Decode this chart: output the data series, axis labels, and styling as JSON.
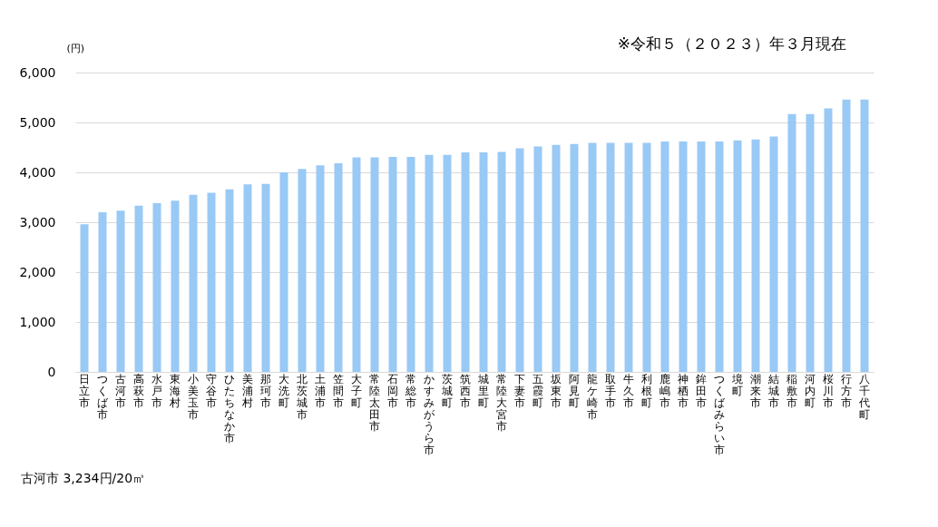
{
  "chart_data": {
    "type": "bar",
    "ylabel": "(円)",
    "annotations": [
      "※令和５（２０２３）年３月現在",
      "古河市 3,234円/20㎥"
    ],
    "categories": [
      "日立市",
      "つくば市",
      "古河市",
      "高萩市",
      "水戸市",
      "東海村",
      "小美玉市",
      "守谷市",
      "ひたちなか市",
      "美浦村",
      "那珂市",
      "大洗町",
      "北茨城市",
      "土浦市",
      "笠間市",
      "大子町",
      "常陸太田市",
      "石岡市",
      "常総市",
      "かすみがうら市",
      "茨城町",
      "筑西市",
      "城里町",
      "常陸大宮市",
      "下妻市",
      "五霞町",
      "坂東市",
      "阿見町",
      "龍ケ崎市",
      "取手市",
      "牛久市",
      "利根町",
      "鹿嶋市",
      "神栖市",
      "鉾田市",
      "つくばみらい市",
      "境町",
      "潮来市",
      "結城市",
      "稲敷市",
      "河内町",
      "桜川市",
      "行方市",
      "八千代町"
    ],
    "values": [
      2960,
      3200,
      3234,
      3330,
      3380,
      3430,
      3550,
      3590,
      3660,
      3760,
      3770,
      4000,
      4070,
      4140,
      4180,
      4300,
      4300,
      4310,
      4310,
      4350,
      4350,
      4400,
      4400,
      4410,
      4480,
      4520,
      4550,
      4570,
      4590,
      4590,
      4590,
      4590,
      4620,
      4620,
      4620,
      4620,
      4640,
      4660,
      4720,
      5170,
      5170,
      5280,
      5460,
      5460
    ],
    "color": "#99c9f5",
    "ylim": [
      0,
      6000
    ],
    "yticks": [
      0,
      {
        "value": 1000,
        "label": "1,000"
      },
      {
        "value": 2000,
        "label": "2,000"
      },
      {
        "value": 3000,
        "label": "3,000"
      },
      {
        "value": 4000,
        "label": "4,000"
      },
      {
        "value": 5000,
        "label": "5,000"
      },
      {
        "value": 6000,
        "label": "6,000"
      }
    ],
    "grid": "y"
  }
}
